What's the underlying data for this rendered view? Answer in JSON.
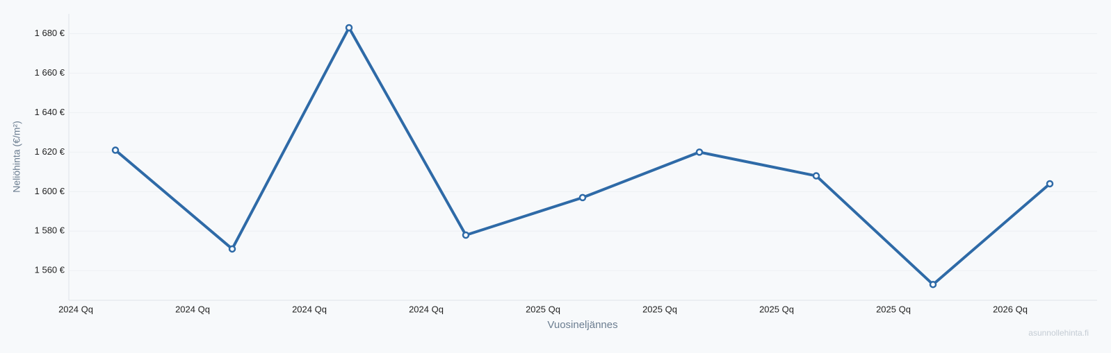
{
  "chart_data": {
    "type": "line",
    "y_label": "Neliöhinta (€/m²)",
    "x_label": "Vuosineljännes",
    "watermark": "asunnollehinta.fi",
    "categories": [
      "2024 Qq",
      "2024 Qq",
      "2024 Qq",
      "2024 Qq",
      "2025 Qq",
      "2025 Qq",
      "2025 Qq",
      "2025 Qq",
      "2026 Qq"
    ],
    "series": [
      {
        "color": "#2e6aa7",
        "values": [
          1621,
          1571,
          1683,
          1578,
          1597,
          1620,
          1608,
          1553,
          1604
        ]
      }
    ],
    "ylim": [
      1545,
      1690
    ],
    "yticks": [
      {
        "value": 1560,
        "label": "1 560 €"
      },
      {
        "value": 1580,
        "label": "1 580 €"
      },
      {
        "value": 1600,
        "label": "1 600 €"
      },
      {
        "value": 1620,
        "label": "1 620 €"
      },
      {
        "value": 1640,
        "label": "1 640 €"
      },
      {
        "value": 1660,
        "label": "1 660 €"
      },
      {
        "value": 1680,
        "label": "1 680 €"
      }
    ],
    "grid": true
  }
}
